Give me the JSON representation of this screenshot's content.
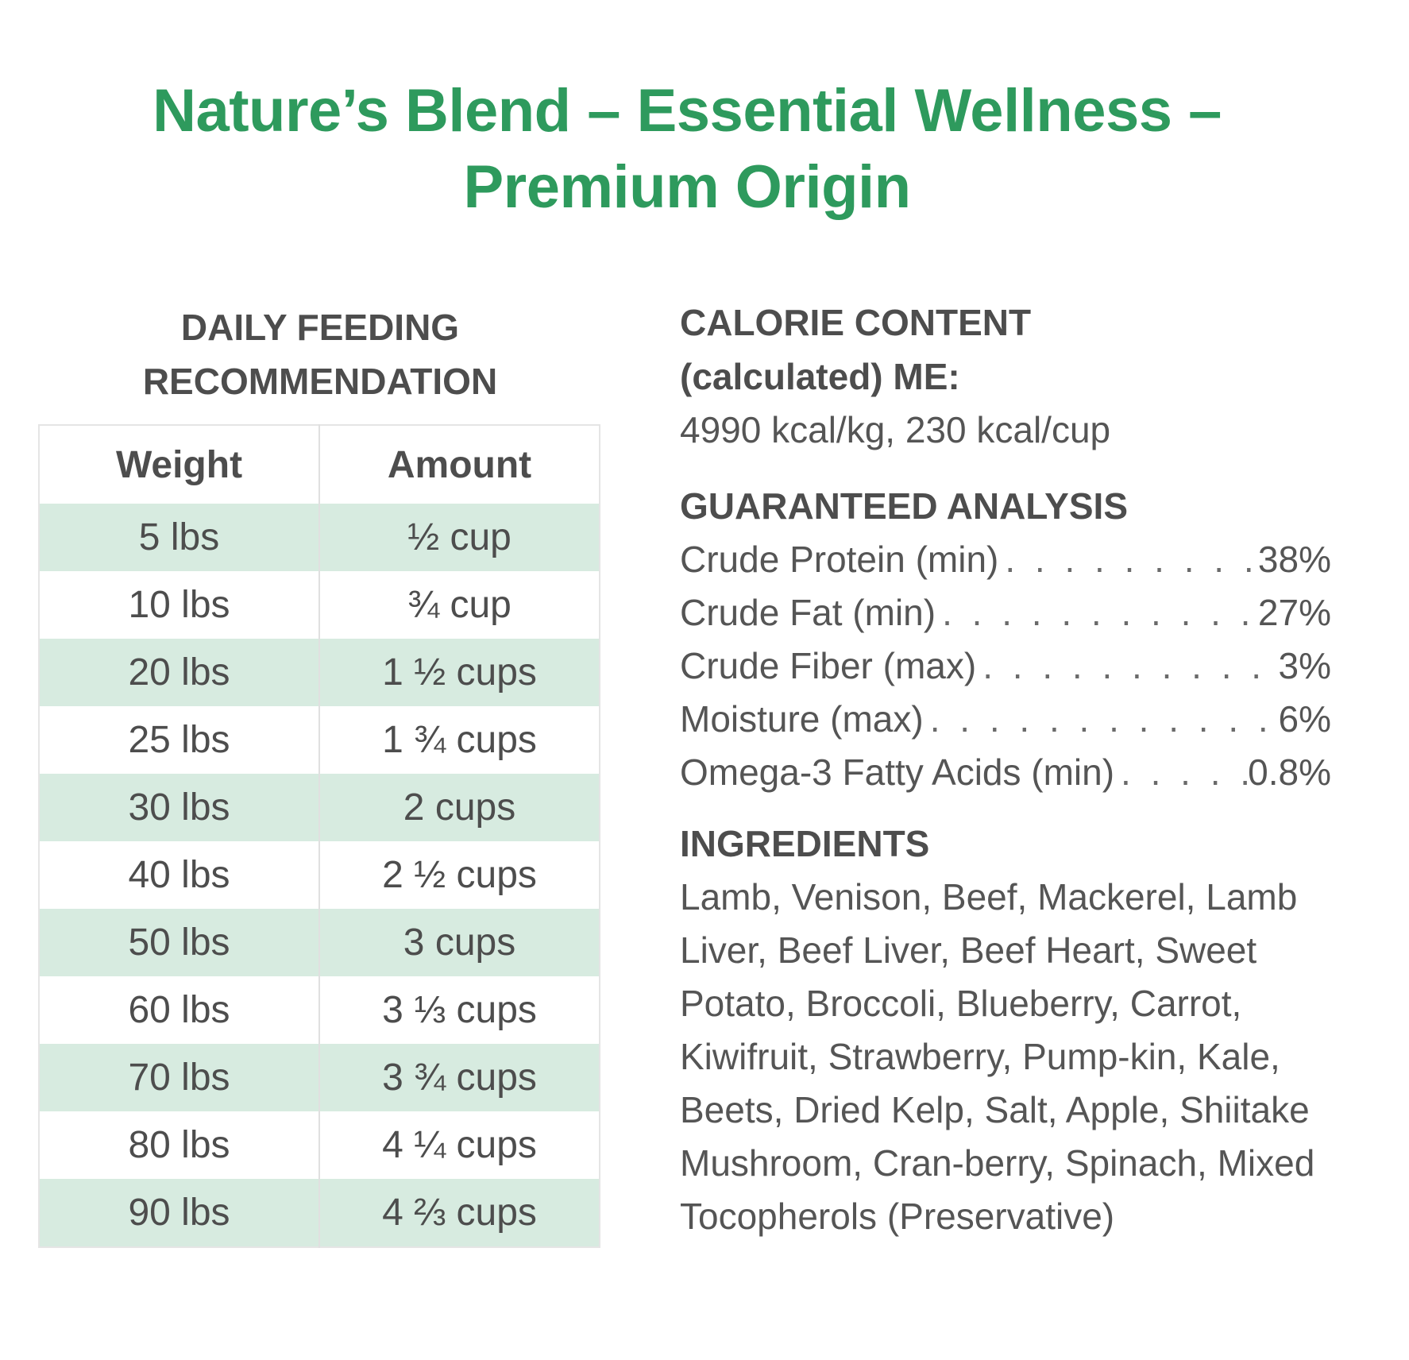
{
  "title": {
    "line1": "Nature’s Blend – Essential Wellness –",
    "line2": "Premium Origin"
  },
  "feeding": {
    "heading_line1": "DAILY FEEDING",
    "heading_line2": "RECOMMENDATION",
    "columns": [
      "Weight",
      "Amount"
    ],
    "rows": [
      {
        "weight": "5 lbs",
        "amount": "½ cup"
      },
      {
        "weight": "10 lbs",
        "amount": "¾ cup"
      },
      {
        "weight": "20 lbs",
        "amount": "1 ½ cups"
      },
      {
        "weight": "25 lbs",
        "amount": "1 ¾ cups"
      },
      {
        "weight": "30 lbs",
        "amount": "2 cups"
      },
      {
        "weight": "40 lbs",
        "amount": "2 ½ cups"
      },
      {
        "weight": "50 lbs",
        "amount": "3 cups"
      },
      {
        "weight": "60 lbs",
        "amount": "3 ⅓ cups"
      },
      {
        "weight": "70 lbs",
        "amount": "3 ¾ cups"
      },
      {
        "weight": "80 lbs",
        "amount": "4 ¼ cups"
      },
      {
        "weight": "90 lbs",
        "amount": "4 ⅔ cups"
      }
    ]
  },
  "calorie": {
    "heading_line1": "CALORIE CONTENT",
    "heading_line2": "(calculated) ME:",
    "value": "4990 kcal/kg, 230 kcal/cup"
  },
  "analysis": {
    "heading": "GUARANTEED ANALYSIS",
    "rows": [
      {
        "label": "Crude Protein (min)",
        "value": "38%"
      },
      {
        "label": "Crude Fat (min)",
        "value": "27%"
      },
      {
        "label": "Crude Fiber (max)",
        "value": "3%"
      },
      {
        "label": "Moisture (max)",
        "value": "6%"
      },
      {
        "label": "Omega-3 Fatty Acids (min)",
        "value": "0.8%"
      }
    ]
  },
  "ingredients": {
    "heading": "INGREDIENTS",
    "text": "Lamb, Venison, Beef, Mackerel, Lamb Liver, Beef Liver, Beef Heart, Sweet Potato, Broccoli, Blueberry, Carrot, Kiwifruit, Strawberry, Pump-kin, Kale, Beets, Dried Kelp, Salt, Apple, Shiitake Mushroom, Cran-berry, Spinach, Mixed Tocopherols (Preservative)"
  },
  "colors": {
    "title_green": "#2e9a5d",
    "row_shade": "#d7ebe0",
    "text_gray": "#4d4d4d"
  }
}
